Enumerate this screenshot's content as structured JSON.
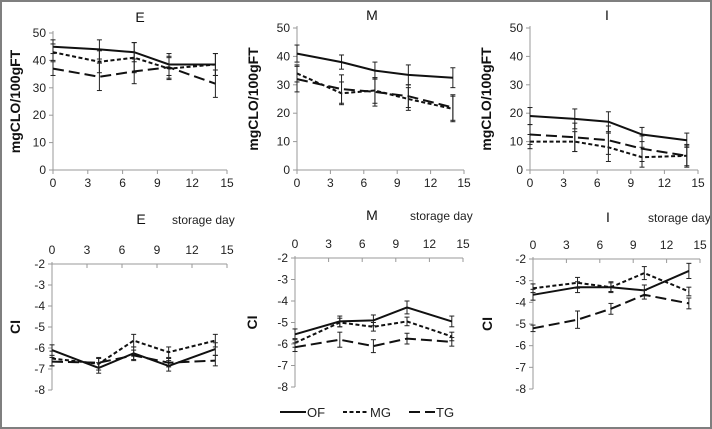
{
  "figure": {
    "legend": [
      {
        "name": "OF",
        "style": "solid"
      },
      {
        "name": "MG",
        "style": "dotted"
      },
      {
        "name": "TG",
        "style": "dashed"
      }
    ]
  },
  "chart_data": [
    {
      "type": "line",
      "title": "E",
      "xlabel": "",
      "ylabel": "mgCLO/100gFT",
      "x": [
        0,
        4,
        7,
        10,
        14
      ],
      "xticks": [
        0,
        3,
        6,
        9,
        12,
        15
      ],
      "xlim": [
        0,
        15
      ],
      "ylim": [
        0,
        50
      ],
      "yticks": [
        0,
        10,
        20,
        30,
        40,
        50
      ],
      "series": [
        {
          "name": "OF",
          "values": [
            45,
            44,
            43,
            38.5,
            38.5
          ],
          "err": [
            2.5,
            3.5,
            3.5,
            4,
            4
          ]
        },
        {
          "name": "MG",
          "values": [
            43,
            39.5,
            41,
            37,
            38.5
          ],
          "err": [
            3,
            4,
            5.5,
            4,
            4
          ]
        },
        {
          "name": "TG",
          "values": [
            37,
            34,
            36,
            37.5,
            31.5
          ],
          "err": [
            2.5,
            5,
            4.5,
            4,
            5
          ]
        }
      ]
    },
    {
      "type": "line",
      "title": "M",
      "xlabel": "",
      "ylabel": "mgCLO/100gFT",
      "x": [
        0,
        4,
        7,
        10,
        14
      ],
      "xticks": [
        0,
        3,
        6,
        9,
        12,
        15
      ],
      "xlim": [
        0,
        15
      ],
      "ylim": [
        0,
        50
      ],
      "yticks": [
        0,
        10,
        20,
        30,
        40,
        50
      ],
      "series": [
        {
          "name": "OF",
          "values": [
            41,
            38,
            35,
            33.5,
            32.5
          ],
          "err": [
            3,
            2.5,
            3,
            3.5,
            3.5
          ]
        },
        {
          "name": "MG",
          "values": [
            34,
            27,
            28,
            25,
            21.5
          ],
          "err": [
            3,
            4,
            4.5,
            4,
            4.5
          ]
        },
        {
          "name": "TG",
          "values": [
            32,
            28.5,
            27.5,
            26,
            22
          ],
          "err": [
            4.5,
            5,
            5,
            4,
            4.5
          ]
        }
      ]
    },
    {
      "type": "line",
      "title": "I",
      "xlabel": "",
      "ylabel": "mgCLO/100gFT",
      "x": [
        0,
        4,
        7,
        10,
        14
      ],
      "xticks": [
        0,
        3,
        6,
        9,
        12,
        15
      ],
      "xlim": [
        0,
        15
      ],
      "ylim": [
        0,
        50
      ],
      "yticks": [
        0,
        10,
        20,
        30,
        40,
        50
      ],
      "series": [
        {
          "name": "OF",
          "values": [
            19,
            18,
            17,
            12.5,
            10.5
          ],
          "err": [
            3,
            3.5,
            3.5,
            2.5,
            2.5
          ]
        },
        {
          "name": "MG",
          "values": [
            10,
            10,
            8,
            4.5,
            5
          ],
          "err": [
            2.5,
            3.5,
            5,
            3.5,
            4
          ]
        },
        {
          "name": "TG",
          "values": [
            12.5,
            11.5,
            10.5,
            7.5,
            5
          ],
          "err": [
            3.5,
            5,
            5,
            4.5,
            3.5
          ]
        }
      ]
    },
    {
      "type": "line",
      "title": "E",
      "xlabel": "storage day",
      "ylabel": "CI",
      "x": [
        0,
        4,
        7,
        10,
        14
      ],
      "xticks": [
        0,
        3,
        6,
        9,
        12,
        15
      ],
      "xlim": [
        0,
        15
      ],
      "ylim": [
        -8,
        -2
      ],
      "yticks": [
        -2,
        -3,
        -4,
        -5,
        -6,
        -7,
        -8
      ],
      "xaxis_position": "top",
      "series": [
        {
          "name": "OF",
          "values": [
            -6.1,
            -6.95,
            -6.25,
            -6.85,
            -6.05
          ],
          "err": [
            0.25,
            0.25,
            0.3,
            0.25,
            0.3
          ]
        },
        {
          "name": "MG",
          "values": [
            -6.5,
            -6.75,
            -5.65,
            -6.2,
            -5.65
          ],
          "err": [
            0.35,
            0.3,
            0.3,
            0.25,
            0.3
          ]
        },
        {
          "name": "TG",
          "values": [
            -6.65,
            -6.7,
            -6.35,
            -6.7,
            -6.6
          ],
          "err": [
            0.2,
            0.2,
            0.25,
            0.2,
            0.25
          ]
        }
      ]
    },
    {
      "type": "line",
      "title": "M",
      "xlabel": "storage day",
      "ylabel": "CI",
      "x": [
        0,
        4,
        7,
        10,
        14
      ],
      "xticks": [
        0,
        3,
        6,
        9,
        12,
        15
      ],
      "xlim": [
        0,
        15
      ],
      "ylim": [
        -8,
        -2
      ],
      "yticks": [
        -2,
        -3,
        -4,
        -5,
        -6,
        -7,
        -8
      ],
      "xaxis_position": "top",
      "series": [
        {
          "name": "OF",
          "values": [
            -5.55,
            -4.95,
            -4.9,
            -4.3,
            -4.95
          ],
          "err": [
            0.25,
            0.25,
            0.25,
            0.3,
            0.25
          ]
        },
        {
          "name": "MG",
          "values": [
            -5.95,
            -5.0,
            -5.2,
            -4.95,
            -5.65
          ],
          "err": [
            0.2,
            0.2,
            0.2,
            0.2,
            0.2
          ]
        },
        {
          "name": "TG",
          "values": [
            -6.15,
            -5.8,
            -6.1,
            -5.75,
            -5.9
          ],
          "err": [
            0.2,
            0.35,
            0.3,
            0.25,
            0.2
          ]
        }
      ]
    },
    {
      "type": "line",
      "title": "I",
      "xlabel": "storage day",
      "ylabel": "CI",
      "x": [
        0,
        4,
        7,
        10,
        14
      ],
      "xticks": [
        0,
        3,
        6,
        9,
        12,
        15
      ],
      "xlim": [
        0,
        15
      ],
      "ylim": [
        -8,
        -2
      ],
      "yticks": [
        -2,
        -3,
        -4,
        -5,
        -6,
        -7,
        -8
      ],
      "xaxis_position": "top",
      "series": [
        {
          "name": "OF",
          "values": [
            -3.65,
            -3.3,
            -3.3,
            -3.45,
            -2.55
          ],
          "err": [
            0.25,
            0.25,
            0.25,
            0.25,
            0.35
          ]
        },
        {
          "name": "MG",
          "values": [
            -3.35,
            -3.1,
            -3.3,
            -2.65,
            -3.5
          ],
          "err": [
            0.2,
            0.25,
            0.2,
            0.3,
            0.2
          ]
        },
        {
          "name": "TG",
          "values": [
            -5.2,
            -4.8,
            -4.3,
            -3.65,
            -4.05
          ],
          "err": [
            0.15,
            0.4,
            0.25,
            0.2,
            0.25
          ]
        }
      ]
    }
  ]
}
